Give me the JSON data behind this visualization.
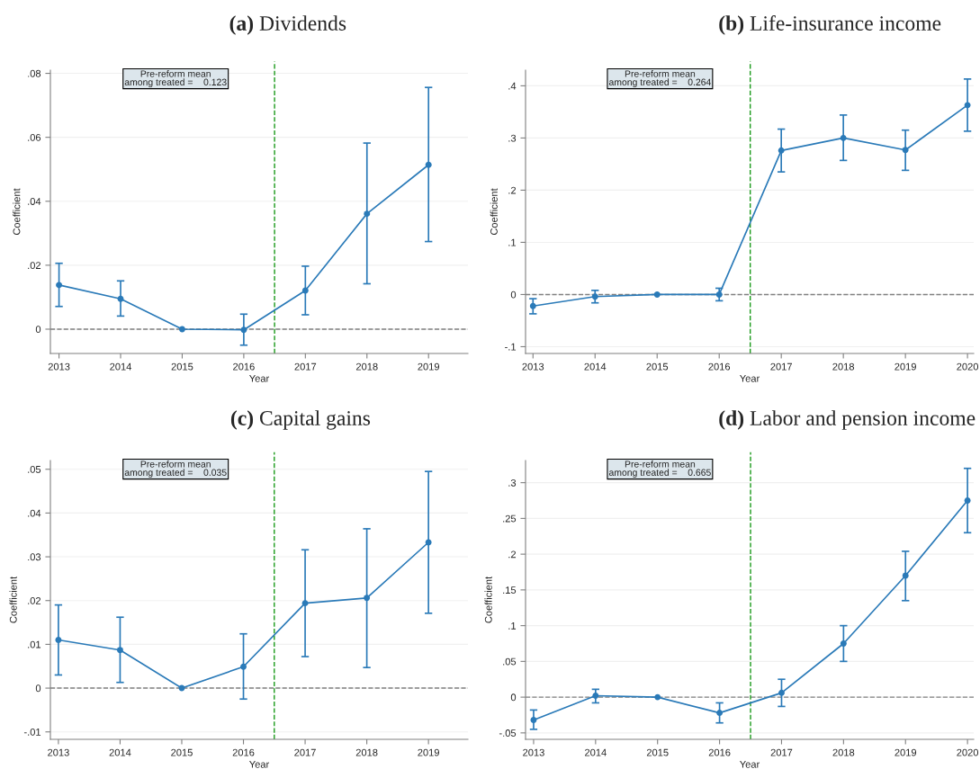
{
  "chart_data": [
    {
      "type": "line",
      "title": "(a) Dividends",
      "xlabel": "Year",
      "ylabel": "Coefficient",
      "x": [
        2013,
        2014,
        2015,
        2016,
        2017,
        2018,
        2019
      ],
      "series": [
        {
          "color": "#2a7ab8",
          "values": [
            0.0138,
            0.0095,
            0,
            -0.0002,
            0.0121,
            0.0361,
            0.0514
          ],
          "errors": [
            [
              0.0071,
              0.0206
            ],
            [
              0.0041,
              0.0151
            ],
            null,
            [
              -0.005,
              0.0047
            ],
            [
              0.0045,
              0.0197
            ],
            [
              0.0142,
              0.0582
            ],
            [
              0.0274,
              0.0756
            ]
          ]
        }
      ],
      "xlim": [
        2012.86,
        2019.64
      ],
      "xticks": [
        2013,
        2014,
        2015,
        2016,
        2017,
        2018,
        2019
      ],
      "ylim": [
        -0.0076,
        0.081
      ],
      "yticks": [
        {
          "value": 0,
          "label": "0"
        },
        {
          "value": 0.02,
          "label": ".02"
        },
        {
          "value": 0.04,
          "label": ".04"
        },
        {
          "value": 0.06,
          "label": ".06"
        },
        {
          "value": 0.08,
          "label": ".08"
        }
      ],
      "ref_lines": [
        {
          "axis": "y",
          "value": 0,
          "color": "#808080",
          "line_style": "dashed"
        },
        {
          "axis": "x",
          "value": 2016.5,
          "color": "#1a9a1a",
          "line_style": "dashed"
        }
      ],
      "annotations": [
        "Pre-reform mean\namong treated =    0.123"
      ],
      "grid": "y",
      "marker": "circle",
      "line_style": "solid",
      "legend": false
    },
    {
      "type": "line",
      "title": "(b) Life-insurance income",
      "xlabel": "Year",
      "ylabel": "Coefficient",
      "x": [
        2013,
        2014,
        2015,
        2016,
        2017,
        2018,
        2019,
        2020
      ],
      "series": [
        {
          "color": "#2a7ab8",
          "values": [
            -0.022,
            -0.004,
            0,
            0,
            0.276,
            0.3,
            0.277,
            0.363
          ],
          "errors": [
            [
              -0.037,
              -0.008
            ],
            [
              -0.016,
              0.008
            ],
            null,
            [
              -0.012,
              0.012
            ],
            [
              0.235,
              0.317
            ],
            [
              0.257,
              0.344
            ],
            [
              0.238,
              0.315
            ],
            [
              0.313,
              0.413
            ]
          ]
        }
      ],
      "xlim": [
        2012.88,
        2020.1
      ],
      "xticks": [
        2013,
        2014,
        2015,
        2016,
        2017,
        2018,
        2019,
        2020
      ],
      "ylim": [
        -0.113,
        0.43
      ],
      "yticks": [
        {
          "value": -0.1,
          "label": "-.1"
        },
        {
          "value": 0,
          "label": "0"
        },
        {
          "value": 0.1,
          "label": ".1"
        },
        {
          "value": 0.2,
          "label": ".2"
        },
        {
          "value": 0.3,
          "label": ".3"
        },
        {
          "value": 0.4,
          "label": ".4"
        }
      ],
      "ref_lines": [
        {
          "axis": "y",
          "value": 0,
          "color": "#808080",
          "line_style": "dashed"
        },
        {
          "axis": "x",
          "value": 2016.5,
          "color": "#1a9a1a",
          "line_style": "dashed"
        }
      ],
      "annotations": [
        "Pre-reform mean\namong treated =    0.264"
      ],
      "grid": "y",
      "marker": "circle",
      "line_style": "solid",
      "legend": false
    },
    {
      "type": "line",
      "title": "(c) Capital gains",
      "xlabel": "Year",
      "ylabel": "Coefficient",
      "x": [
        2013,
        2014,
        2015,
        2016,
        2017,
        2018,
        2019
      ],
      "series": [
        {
          "color": "#2a7ab8",
          "values": [
            0.011,
            0.0087,
            0,
            0.0049,
            0.0194,
            0.0206,
            0.0333
          ],
          "errors": [
            [
              0.003,
              0.019
            ],
            [
              0.0013,
              0.0162
            ],
            null,
            [
              -0.0025,
              0.0124
            ],
            [
              0.0072,
              0.0316
            ],
            [
              0.0047,
              0.0364
            ],
            [
              0.0171,
              0.0495
            ]
          ]
        }
      ],
      "xlim": [
        2012.87,
        2019.64
      ],
      "xticks": [
        2013,
        2014,
        2015,
        2016,
        2017,
        2018,
        2019
      ],
      "ylim": [
        -0.0117,
        0.052
      ],
      "yticks": [
        {
          "value": -0.01,
          "label": "-.01"
        },
        {
          "value": 0,
          "label": "0"
        },
        {
          "value": 0.01,
          "label": ".01"
        },
        {
          "value": 0.02,
          "label": ".02"
        },
        {
          "value": 0.03,
          "label": ".03"
        },
        {
          "value": 0.04,
          "label": ".04"
        },
        {
          "value": 0.05,
          "label": ".05"
        }
      ],
      "ref_lines": [
        {
          "axis": "y",
          "value": 0,
          "color": "#808080",
          "line_style": "dashed"
        },
        {
          "axis": "x",
          "value": 2016.5,
          "color": "#1a9a1a",
          "line_style": "dashed"
        }
      ],
      "annotations": [
        "Pre-reform mean\namong treated =    0.035"
      ],
      "grid": "y",
      "marker": "circle",
      "line_style": "solid",
      "legend": false
    },
    {
      "type": "line",
      "title": "(d) Labor and pension income",
      "xlabel": "Year",
      "ylabel": "Coefficient",
      "x": [
        2013,
        2014,
        2015,
        2016,
        2017,
        2018,
        2019,
        2020
      ],
      "series": [
        {
          "color": "#2a7ab8",
          "values": [
            -0.032,
            0.002,
            0,
            -0.022,
            0.006,
            0.075,
            0.17,
            0.275
          ],
          "errors": [
            [
              -0.045,
              -0.018
            ],
            [
              -0.008,
              0.011
            ],
            null,
            [
              -0.036,
              -0.008
            ],
            [
              -0.013,
              0.025
            ],
            [
              0.05,
              0.1
            ],
            [
              0.135,
              0.204
            ],
            [
              0.23,
              0.32
            ]
          ]
        }
      ],
      "xlim": [
        2012.87,
        2020.1
      ],
      "xticks": [
        2013,
        2014,
        2015,
        2016,
        2017,
        2018,
        2019,
        2020
      ],
      "ylim": [
        -0.059,
        0.331
      ],
      "yticks": [
        {
          "value": -0.05,
          "label": "-.05"
        },
        {
          "value": 0,
          "label": "0"
        },
        {
          "value": 0.05,
          "label": ".05"
        },
        {
          "value": 0.1,
          "label": ".1"
        },
        {
          "value": 0.15,
          "label": ".15"
        },
        {
          "value": 0.2,
          "label": ".2"
        },
        {
          "value": 0.25,
          "label": ".25"
        },
        {
          "value": 0.3,
          "label": ".3"
        }
      ],
      "ref_lines": [
        {
          "axis": "y",
          "value": 0,
          "color": "#808080",
          "line_style": "dashed"
        },
        {
          "axis": "x",
          "value": 2016.5,
          "color": "#1a9a1a",
          "line_style": "dashed"
        }
      ],
      "annotations": [
        "Pre-reform mean\namong treated =    0.665"
      ],
      "grid": "y",
      "marker": "circle",
      "line_style": "solid",
      "legend": false
    }
  ]
}
